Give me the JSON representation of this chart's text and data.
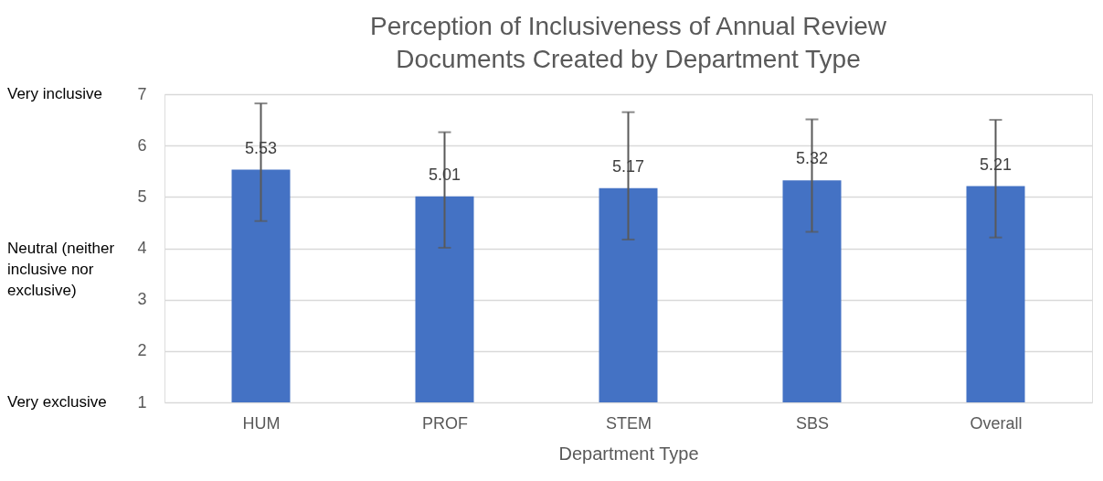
{
  "chart_data": {
    "type": "bar",
    "title": "Perception of Inclusiveness of Annual Review Documents Created by Department Type",
    "xlabel": "Department Type",
    "categories": [
      "HUM",
      "PROF",
      "STEM",
      "SBS",
      "Overall"
    ],
    "values": [
      5.53,
      5.01,
      5.17,
      5.32,
      5.21
    ],
    "errors": [
      [
        4.53,
        6.82
      ],
      [
        4.01,
        6.26
      ],
      [
        4.17,
        6.65
      ],
      [
        4.32,
        6.51
      ],
      [
        4.21,
        6.5
      ]
    ],
    "color": "#4472c4",
    "ylim": [
      1,
      7
    ],
    "yticks": [
      1,
      2,
      3,
      4,
      5,
      6,
      7
    ],
    "grid": "y",
    "data_labels": true,
    "annotations": [
      "Very inclusive",
      "Neutral (neither inclusive nor exclusive)",
      "Very exclusive"
    ]
  }
}
